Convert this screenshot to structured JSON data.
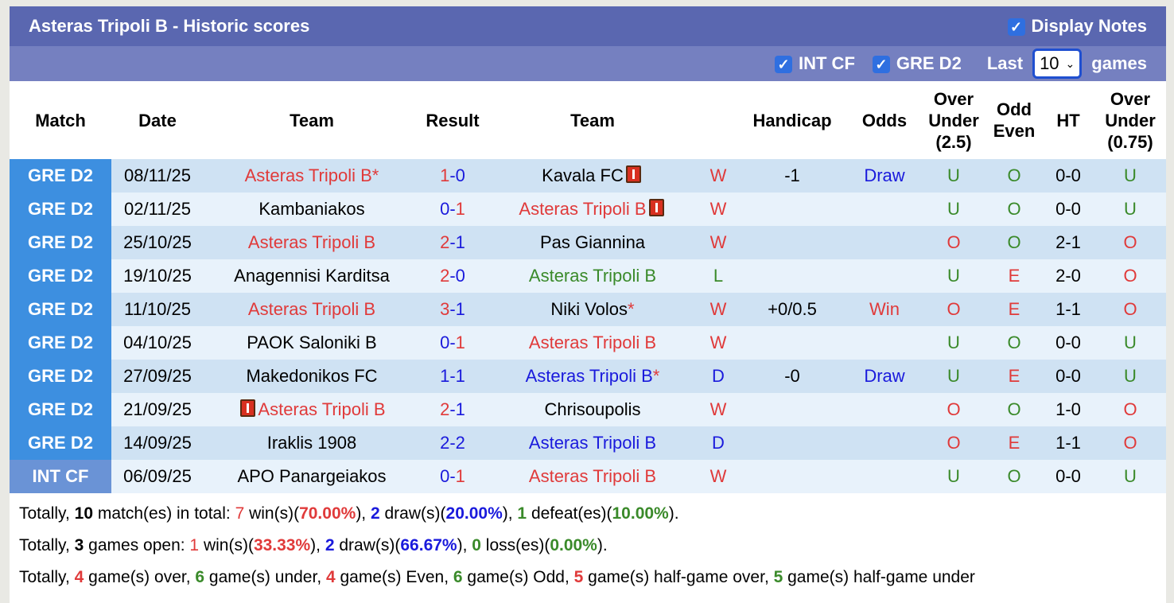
{
  "header": {
    "title": "Asteras Tripoli B - Historic scores",
    "display_notes": "Display Notes",
    "display_notes_checked": true
  },
  "filters": {
    "int_cf": "INT CF",
    "int_cf_checked": true,
    "gre_d2": "GRE D2",
    "gre_d2_checked": true,
    "last": "Last",
    "last_value": "10",
    "games": "games"
  },
  "colors": {
    "red": "#e03a3a",
    "blue": "#1a1adc",
    "green": "#3a8a2a",
    "black": "#000000"
  },
  "columns": [
    "Match",
    "Date",
    "Team",
    "Result",
    "Team",
    "",
    "Handicap",
    "Odds",
    "Over Under (2.5)",
    "Odd Even",
    "HT",
    "Over Under (0.75)"
  ],
  "rows": [
    {
      "match": "GRE D2",
      "date": "08/11/25",
      "home": "Asteras Tripoli B",
      "home_color": "red",
      "home_star": true,
      "hg": "1",
      "ag": "0",
      "away": "Kavala FC",
      "away_color": "black",
      "away_card": true,
      "wl": "W",
      "wl_color": "red",
      "handicap": "-1",
      "odds": "Draw",
      "odds_color": "blue",
      "ou": "U",
      "ou_color": "green",
      "oe": "O",
      "oe_color": "green",
      "ht": "0-0",
      "ou2": "U",
      "ou2_color": "green"
    },
    {
      "match": "GRE D2",
      "date": "02/11/25",
      "home": "Kambaniakos",
      "home_color": "black",
      "hg": "0",
      "ag": "1",
      "away": "Asteras Tripoli B",
      "away_color": "red",
      "away_card": true,
      "wl": "W",
      "wl_color": "red",
      "handicap": "",
      "odds": "",
      "ou": "U",
      "ou_color": "green",
      "oe": "O",
      "oe_color": "green",
      "ht": "0-0",
      "ou2": "U",
      "ou2_color": "green"
    },
    {
      "match": "GRE D2",
      "date": "25/10/25",
      "home": "Asteras Tripoli B",
      "home_color": "red",
      "hg": "2",
      "ag": "1",
      "away": "Pas Giannina",
      "away_color": "black",
      "wl": "W",
      "wl_color": "red",
      "handicap": "",
      "odds": "",
      "ou": "O",
      "ou_color": "red",
      "oe": "O",
      "oe_color": "green",
      "ht": "2-1",
      "ou2": "O",
      "ou2_color": "red"
    },
    {
      "match": "GRE D2",
      "date": "19/10/25",
      "home": "Anagennisi Karditsa",
      "home_color": "black",
      "hg": "2",
      "ag": "0",
      "away": "Asteras Tripoli B",
      "away_color": "green",
      "wl": "L",
      "wl_color": "green",
      "handicap": "",
      "odds": "",
      "ou": "U",
      "ou_color": "green",
      "oe": "E",
      "oe_color": "red",
      "ht": "2-0",
      "ou2": "O",
      "ou2_color": "red"
    },
    {
      "match": "GRE D2",
      "date": "11/10/25",
      "home": "Asteras Tripoli B",
      "home_color": "red",
      "hg": "3",
      "ag": "1",
      "away": "Niki Volos",
      "away_color": "black",
      "away_star": true,
      "wl": "W",
      "wl_color": "red",
      "handicap": "+0/0.5",
      "odds": "Win",
      "odds_color": "red",
      "ou": "O",
      "ou_color": "red",
      "oe": "E",
      "oe_color": "red",
      "ht": "1-1",
      "ou2": "O",
      "ou2_color": "red"
    },
    {
      "match": "GRE D2",
      "date": "04/10/25",
      "home": "PAOK Saloniki B",
      "home_color": "black",
      "hg": "0",
      "ag": "1",
      "away": "Asteras Tripoli B",
      "away_color": "red",
      "wl": "W",
      "wl_color": "red",
      "handicap": "",
      "odds": "",
      "ou": "U",
      "ou_color": "green",
      "oe": "O",
      "oe_color": "green",
      "ht": "0-0",
      "ou2": "U",
      "ou2_color": "green"
    },
    {
      "match": "GRE D2",
      "date": "27/09/25",
      "home": "Makedonikos FC",
      "home_color": "black",
      "hg": "1",
      "ag": "1",
      "away": "Asteras Tripoli B",
      "away_color": "blue",
      "away_star": true,
      "wl": "D",
      "wl_color": "blue",
      "handicap": "-0",
      "odds": "Draw",
      "odds_color": "blue",
      "ou": "U",
      "ou_color": "green",
      "oe": "E",
      "oe_color": "red",
      "ht": "0-0",
      "ou2": "U",
      "ou2_color": "green"
    },
    {
      "match": "GRE D2",
      "date": "21/09/25",
      "home": "Asteras Tripoli B",
      "home_color": "red",
      "home_card": true,
      "hg": "2",
      "ag": "1",
      "away": "Chrisoupolis",
      "away_color": "black",
      "wl": "W",
      "wl_color": "red",
      "handicap": "",
      "odds": "",
      "ou": "O",
      "ou_color": "red",
      "oe": "O",
      "oe_color": "green",
      "ht": "1-0",
      "ou2": "O",
      "ou2_color": "red"
    },
    {
      "match": "GRE D2",
      "date": "14/09/25",
      "home": "Iraklis 1908",
      "home_color": "black",
      "hg": "2",
      "ag": "2",
      "away": "Asteras Tripoli B",
      "away_color": "blue",
      "wl": "D",
      "wl_color": "blue",
      "handicap": "",
      "odds": "",
      "ou": "O",
      "ou_color": "red",
      "oe": "E",
      "oe_color": "red",
      "ht": "1-1",
      "ou2": "O",
      "ou2_color": "red"
    },
    {
      "match": "INT CF",
      "date": "06/09/25",
      "home": "APO Panargeiakos",
      "home_color": "black",
      "hg": "0",
      "ag": "1",
      "away": "Asteras Tripoli B",
      "away_color": "red",
      "wl": "W",
      "wl_color": "red",
      "handicap": "",
      "odds": "",
      "ou": "U",
      "ou_color": "green",
      "oe": "O",
      "oe_color": "green",
      "ht": "0-0",
      "ou2": "U",
      "ou2_color": "green"
    }
  ],
  "summary": [
    [
      {
        "t": "Totally, "
      },
      {
        "t": "10",
        "b": true
      },
      {
        "t": " match(es) in total: "
      },
      {
        "t": "7",
        "c": "red"
      },
      {
        "t": " win(s)("
      },
      {
        "t": "70.00%",
        "c": "red",
        "b": true
      },
      {
        "t": "), "
      },
      {
        "t": "2",
        "c": "blue",
        "b": true
      },
      {
        "t": " draw(s)("
      },
      {
        "t": "20.00%",
        "c": "blue",
        "b": true
      },
      {
        "t": "), "
      },
      {
        "t": "1",
        "c": "green",
        "b": true
      },
      {
        "t": " defeat(es)("
      },
      {
        "t": "10.00%",
        "c": "green",
        "b": true
      },
      {
        "t": ")."
      }
    ],
    [
      {
        "t": "Totally, "
      },
      {
        "t": "3",
        "b": true
      },
      {
        "t": " games open: "
      },
      {
        "t": "1",
        "c": "red"
      },
      {
        "t": " win(s)("
      },
      {
        "t": "33.33%",
        "c": "red",
        "b": true
      },
      {
        "t": "), "
      },
      {
        "t": "2",
        "c": "blue",
        "b": true
      },
      {
        "t": " draw(s)("
      },
      {
        "t": "66.67%",
        "c": "blue",
        "b": true
      },
      {
        "t": "), "
      },
      {
        "t": "0",
        "c": "green",
        "b": true
      },
      {
        "t": " loss(es)("
      },
      {
        "t": "0.00%",
        "c": "green",
        "b": true
      },
      {
        "t": ")."
      }
    ],
    [
      {
        "t": "Totally, "
      },
      {
        "t": "4",
        "c": "red",
        "b": true
      },
      {
        "t": " game(s) over, "
      },
      {
        "t": "6",
        "c": "green",
        "b": true
      },
      {
        "t": " game(s) under, "
      },
      {
        "t": "4",
        "c": "red",
        "b": true
      },
      {
        "t": " game(s) Even, "
      },
      {
        "t": "6",
        "c": "green",
        "b": true
      },
      {
        "t": " game(s) Odd, "
      },
      {
        "t": "5",
        "c": "red",
        "b": true
      },
      {
        "t": " game(s) half-game over, "
      },
      {
        "t": "5",
        "c": "green",
        "b": true
      },
      {
        "t": " game(s) half-game under"
      }
    ]
  ]
}
